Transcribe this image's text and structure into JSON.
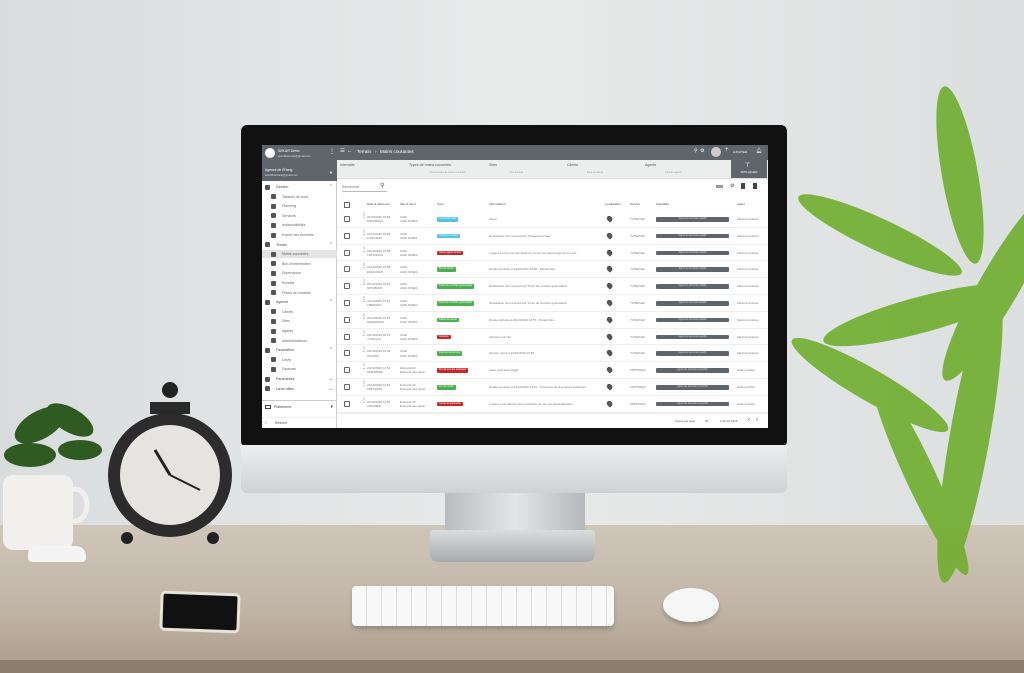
{
  "sidebar": {
    "user_name": "SEKUR Démo",
    "user_email": "lewebfrancais@gmail.com",
    "agency": "Agence de l'Étang",
    "agency_email": "lewebfrancais@gmail.com",
    "items": [
      {
        "label": "Gestion",
        "type": "sec",
        "chev": "^"
      },
      {
        "label": "Tableau de bord",
        "type": "sub"
      },
      {
        "label": "Planning",
        "type": "sub"
      },
      {
        "label": "Services",
        "type": "sub"
      },
      {
        "label": "Indisponibilités",
        "type": "sub"
      },
      {
        "label": "Export des données",
        "type": "sub"
      },
      {
        "label": "Terrain",
        "type": "sec",
        "chev": "^"
      },
      {
        "label": "Mains courantes",
        "type": "sub",
        "active": true
      },
      {
        "label": "Bon d'intervention",
        "type": "sub"
      },
      {
        "label": "Supervision",
        "type": "sub"
      },
      {
        "label": "Rondes",
        "type": "sub"
      },
      {
        "label": "Points de contrôle",
        "type": "sub"
      },
      {
        "label": "Agence",
        "type": "sec",
        "chev": "^"
      },
      {
        "label": "Clients",
        "type": "sub"
      },
      {
        "label": "Sites",
        "type": "sub"
      },
      {
        "label": "Agents",
        "type": "sub"
      },
      {
        "label": "Administrateurs",
        "type": "sub"
      },
      {
        "label": "Facturation",
        "type": "sec",
        "chev": "^"
      },
      {
        "label": "Devis",
        "type": "sub"
      },
      {
        "label": "Factures",
        "type": "sub"
      },
      {
        "label": "Paramètres",
        "type": "sec",
        "chev": "v"
      },
      {
        "label": "Liens utiles",
        "type": "sec",
        "chev": "v"
      }
    ],
    "platform": "Plateforme",
    "collapse": "Réduire"
  },
  "header": {
    "breadcrumb_parent": "Terrain",
    "breadcrumb_current": "Mains courantes",
    "add_label": "AJOUTER"
  },
  "filters": {
    "interval": "Intervalle",
    "types": "Types de mains courantes",
    "types_value": "Tous les types de mains courantes",
    "sites": "Sites",
    "sites_value": "Tous les sites",
    "clients": "Clients",
    "clients_value": "Tous les clients",
    "agents": "Agents",
    "agents_value": "Tous les agents",
    "apply": "APPLIQUER"
  },
  "search": {
    "placeholder": "Rechercher"
  },
  "table": {
    "headers": [
      "Date & référence",
      "Site & client",
      "Type",
      "Informations",
      "Localisation",
      "Service",
      "Spécialité",
      "Agent"
    ],
    "rows": [
      {
        "date": "22/10/2020 16:59",
        "ref": "P9HKMFNS",
        "site": "AUDI",
        "client": "AUDI NIMES",
        "type": "Connexion site",
        "color": "#4fc3e8",
        "info": "Appel",
        "service": "7VS9F5HZ",
        "spec": "Agent de sécurité qualifié",
        "agent": "Maxime Antoine"
      },
      {
        "date": "22/10/2020 16:59",
        "ref": "KJAKHF93",
        "site": "AUDI",
        "client": "AUDI NIMES",
        "type": "Présence entrée",
        "color": "#4fc3e8",
        "info": "Déclaration d'un événement \"Présence entrée\"",
        "service": "7VS9F5HZ",
        "spec": "Agent de sécurité qualifié",
        "agent": "Maxime Antoine"
      },
      {
        "date": "22/10/2020 16:58",
        "ref": "T0ZT2WNS",
        "site": "AUDI",
        "client": "AUDI NIMES",
        "type": "Alerte agent renfort",
        "color": "#c62828",
        "info": "L'agent a émis une demande de renfort aux autres agents sur site",
        "service": "7VS9F5HZ",
        "spec": "Agent de sécurité qualifié",
        "agent": "Maxime Antoine"
      },
      {
        "date": "22/10/2020 16:58",
        "ref": "EM00J2005",
        "site": "AUDI",
        "client": "AUDI NIMES",
        "type": "Fin de ronde",
        "color": "#4caf50",
        "info": "Ronde terminée à 22/10/2020 16:58 - Ronde libre",
        "service": "7VS9F5HZ",
        "spec": "Agent de sécurité qualifié",
        "agent": "Maxime Antoine"
      },
      {
        "date": "22/10/2020 16:57",
        "ref": "9P7Q8F9R",
        "site": "AUDI",
        "client": "AUDI NIMES",
        "type": "Point de contrôle géolocalisé",
        "color": "#4caf50",
        "info": "Déclaration d'un événement \"Point de contrôle géolocalisé\"",
        "service": "7VS9F5HZ",
        "spec": "Agent de sécurité qualifié",
        "agent": "Maxime Antoine"
      },
      {
        "date": "22/10/2020 16:57",
        "ref": "T89E5JKD",
        "site": "AUDI",
        "client": "AUDI NIMES",
        "type": "Point de contrôle géolocalisé",
        "color": "#4caf50",
        "info": "Déclaration d'un événement \"Point de contrôle géolocalisé\"",
        "service": "7VS9F5HZ",
        "spec": "Agent de sécurité qualifié",
        "agent": "Maxime Antoine"
      },
      {
        "date": "22/10/2020 16:57",
        "ref": "9QKEDMSH",
        "site": "AUDI",
        "client": "AUDI NIMES",
        "type": "Début de ronde",
        "color": "#4caf50",
        "info": "Ronde débutée à 22/10/2020 16:57 - Ronde libre",
        "service": "7VS9F5HZ",
        "spec": "Agent de sécurité qualifié",
        "agent": "Maxime Antoine"
      },
      {
        "date": "22/10/2020 16:57",
        "ref": "YLMFQJ0",
        "site": "AUDI",
        "client": "AUDI NIMES",
        "type": "Intrusion",
        "color": "#c62828",
        "info": "Intrusion sur site",
        "service": "7VS9F5HZ",
        "spec": "Agent de sécurité qualifié",
        "agent": "Maxime Antoine"
      },
      {
        "date": "22/10/2020 16:56",
        "ref": "2KLDIML",
        "site": "AUDI",
        "client": "AUDI NIMES",
        "type": "Reprise de service",
        "color": "#4caf50",
        "info": "Service repris à 22/10/2020 16:56",
        "service": "7VS9F5HZ",
        "spec": "Agent de sécurité qualifié",
        "agent": "Maxime Antoine"
      },
      {
        "date": "22/10/2020 14:51",
        "ref": "MDK3BDRL",
        "site": "Entrepôt 33",
        "client": "Entrepôt des quais",
        "type": "Fin de service anticipée",
        "color": "#c62828",
        "info": "Autre (précisez) Rgjgh",
        "service": "X5P67RQH",
        "spec": "Agent de sécurité cynophile",
        "agent": "Hélène Arthur"
      },
      {
        "date": "22/10/2020 14:51",
        "ref": "L8B7Q5AH",
        "site": "Entrepôt 33",
        "client": "Entrepôt des quais",
        "type": "Fin de ronde",
        "color": "#4caf50",
        "info": "Ronde terminée à 22/10/2020 14:51 - Ouverture de la terrasse extérieure",
        "service": "X5P67RQH",
        "spec": "Agent de sécurité cynophile",
        "agent": "Hélène Arthur"
      },
      {
        "date": "22/10/2020 14:50",
        "ref": "L0DJ3MSL",
        "site": "Entrepôt 33",
        "client": "Entrepôt des quais",
        "type": "Sortie de périmètre",
        "color": "#c62828",
        "info": "L'agent a été détecté hors périmètre du site par géolocalisation",
        "service": "X5P67RQH",
        "spec": "Agent de sécurité cynophile",
        "agent": "Hélène Arthur"
      }
    ]
  },
  "pagination": {
    "rows_label": "Lignes par page",
    "rows_value": "25",
    "range": "1-25 sur 1929"
  },
  "colors": {
    "header_bg": "#5f666b",
    "success": "#4caf50",
    "danger": "#c62828",
    "info": "#4fc3e8"
  }
}
